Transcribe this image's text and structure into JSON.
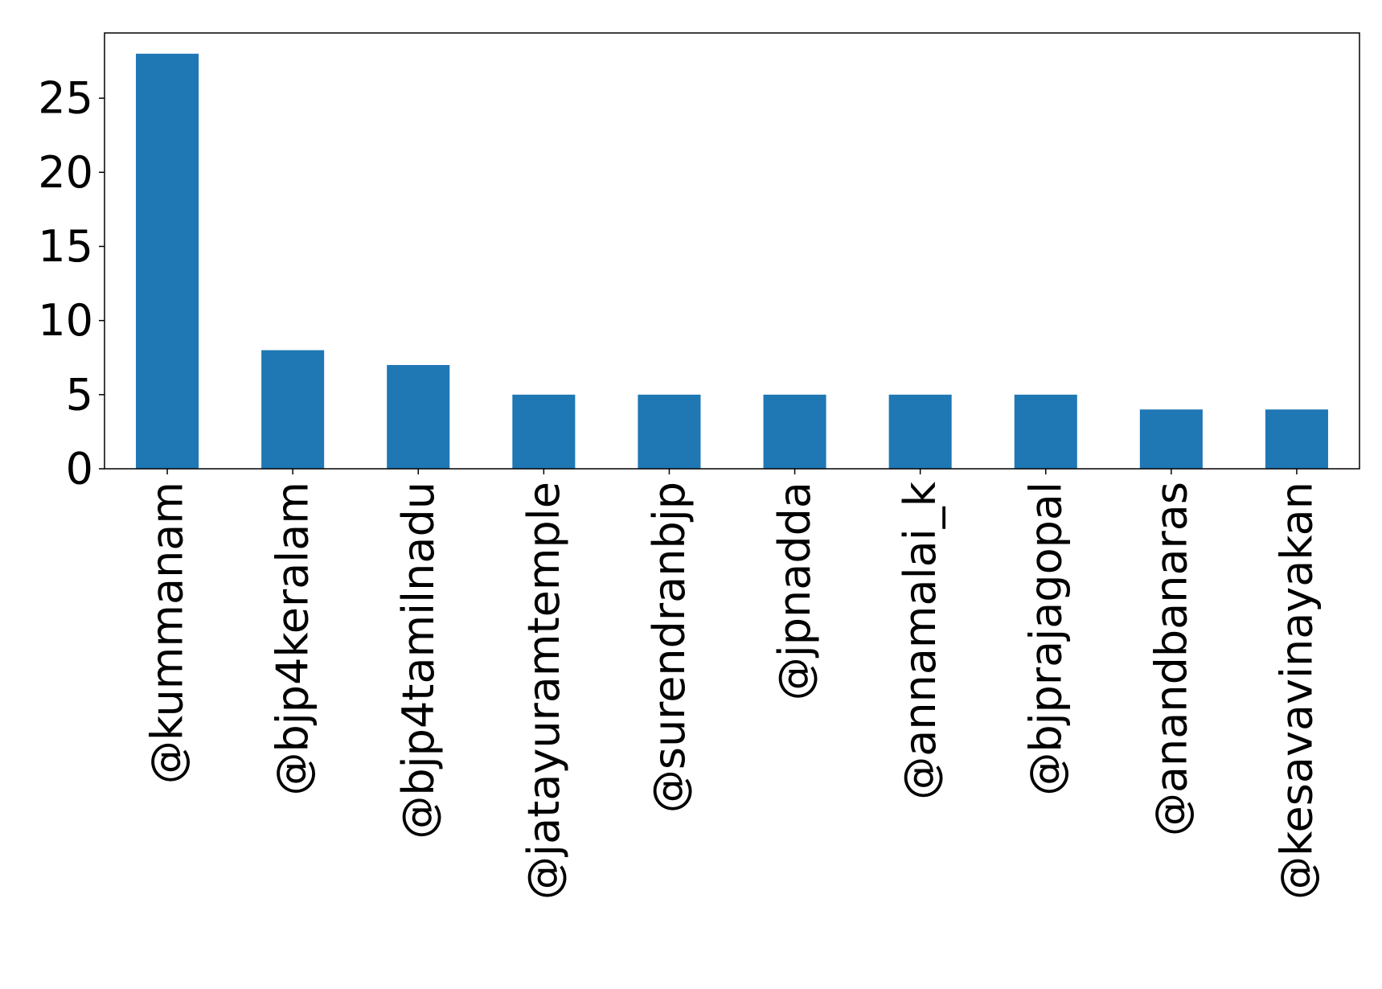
{
  "chart_data": {
    "type": "bar",
    "title": "",
    "xlabel": "",
    "ylabel": "",
    "categories": [
      "@kummanam",
      "@bjp4keralam",
      "@bjp4tamilnadu",
      "@jatayuramtemple",
      "@surendranbjp",
      "@jpnadda",
      "@annamalai_k",
      "@bjprajagopal",
      "@anandbanaras",
      "@kesavavinayakan"
    ],
    "values": [
      28,
      8,
      7,
      5,
      5,
      5,
      5,
      5,
      4,
      4
    ],
    "ylim": [
      0,
      29.4
    ],
    "yticks": [
      0,
      5,
      10,
      15,
      20,
      25
    ],
    "ytick_labels": [
      "0",
      "5",
      "10",
      "15",
      "20",
      "25"
    ],
    "bar_color": "#1f77b4",
    "grid": false,
    "legend": "none"
  }
}
